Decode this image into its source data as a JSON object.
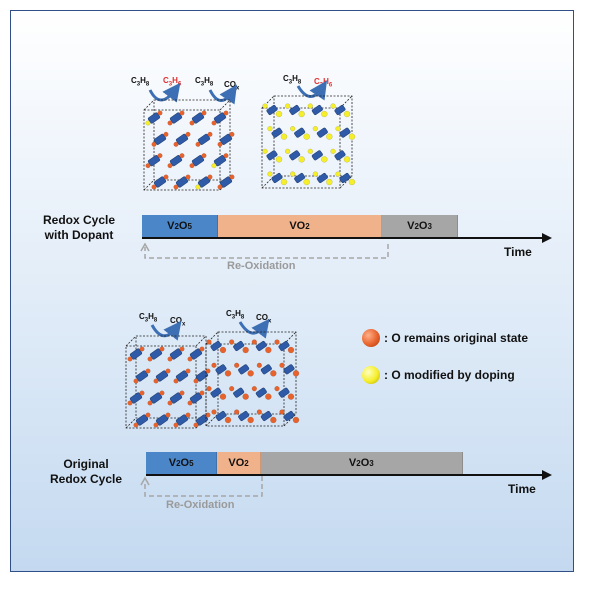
{
  "top": {
    "label_line1": "Redox Cycle",
    "label_line2": "with Dopant",
    "molecules_left": [
      {
        "base": "C",
        "s1": "3",
        "mid": "H",
        "s2": "8",
        "color": "#111111"
      },
      {
        "base": "C",
        "s1": "3",
        "mid": "H",
        "s2": "6",
        "color": "#e03030"
      },
      {
        "base": "C",
        "s1": "3",
        "mid": "H",
        "s2": "8",
        "color": "#111111"
      },
      {
        "base": "CO",
        "s1": "",
        "mid": "",
        "s2": "x",
        "color": "#111111"
      }
    ],
    "molecules_right": [
      {
        "base": "C",
        "s1": "3",
        "mid": "H",
        "s2": "8",
        "color": "#111111"
      },
      {
        "base": "C",
        "s1": "3",
        "mid": "H",
        "s2": "6",
        "color": "#e03030"
      }
    ],
    "segments": [
      {
        "main": "V",
        "sub1": "2",
        "mid": "O",
        "sub2": "5",
        "color": "#4a86c8",
        "start": 0.0,
        "end": 0.19
      },
      {
        "main": "VO",
        "sub1": "",
        "mid": "",
        "sub2": "2",
        "color": "#f0b28a",
        "start": 0.19,
        "end": 0.6
      },
      {
        "main": "V",
        "sub1": "2",
        "mid": "O",
        "sub2": "3",
        "color": "#a6a6a6",
        "start": 0.6,
        "end": 0.79
      }
    ],
    "reoxidation_label": "Re-Oxidation",
    "time_label": "Time"
  },
  "legend": [
    {
      "text": ": O remains original state",
      "color": "#e8622c"
    },
    {
      "text": ": O modified by doping",
      "color": "#f5ee2a"
    }
  ],
  "bottom": {
    "label_line1": "Original",
    "label_line2": "Redox Cycle",
    "molecules": [
      {
        "base": "C",
        "s1": "3",
        "mid": "H",
        "s2": "8",
        "color": "#111111"
      },
      {
        "base": "CO",
        "s1": "",
        "mid": "",
        "s2": "x",
        "color": "#111111"
      },
      {
        "base": "C",
        "s1": "3",
        "mid": "H",
        "s2": "8",
        "color": "#111111"
      },
      {
        "base": "CO",
        "s1": "",
        "mid": "",
        "s2": "x",
        "color": "#111111"
      }
    ],
    "segments": [
      {
        "main": "V",
        "sub1": "2",
        "mid": "O",
        "sub2": "5",
        "color": "#4a86c8",
        "start": 0.0,
        "end": 0.18
      },
      {
        "main": "VO",
        "sub1": "",
        "mid": "",
        "sub2": "2",
        "color": "#f0b28a",
        "start": 0.18,
        "end": 0.29
      },
      {
        "main": "V",
        "sub1": "2",
        "mid": "O",
        "sub2": "3",
        "color": "#a6a6a6",
        "start": 0.29,
        "end": 0.8
      }
    ],
    "reoxidation_label": "Re-Oxidation",
    "time_label": "Time"
  }
}
